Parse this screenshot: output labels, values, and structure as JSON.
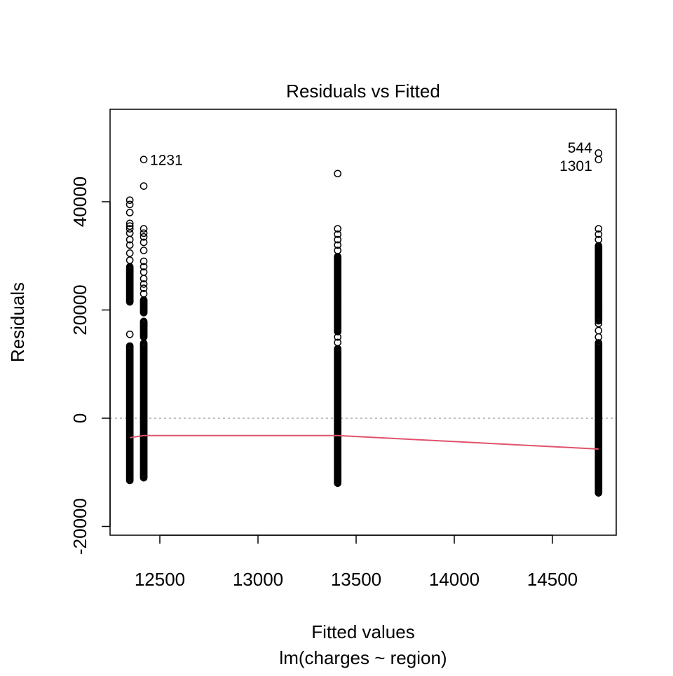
{
  "chart_data": {
    "type": "scatter",
    "title": "Residuals vs Fitted",
    "xlabel": "Fitted values",
    "subtitle": "lm(charges ~ region)",
    "ylabel": "Residuals",
    "xlim": [
      12250,
      14835
    ],
    "ylim": [
      -21700,
      57000
    ],
    "xticks": [
      12500,
      13000,
      13500,
      14000,
      14500
    ],
    "xtick_labels": [
      "12500",
      "13000",
      "13500",
      "14000",
      "14500"
    ],
    "yticks": [
      -20000,
      0,
      20000,
      40000
    ],
    "ytick_labels": [
      "-20000",
      "0",
      "20000",
      "40000"
    ],
    "grid": false,
    "reference_line": 0,
    "groups": [
      {
        "fitted": 12347,
        "dense_ranges": [
          [
            -11500,
            13500
          ],
          [
            21500,
            28000
          ]
        ],
        "points": [
          15500,
          29200,
          30500,
          32000,
          33000,
          34200,
          35000,
          35500,
          36000,
          38000,
          39500,
          40300
        ]
      },
      {
        "fitted": 12418,
        "dense_ranges": [
          [
            -11000,
            14000
          ],
          [
            15000,
            18000
          ],
          [
            19500,
            22000
          ]
        ],
        "points": [
          23000,
          24000,
          24800,
          25800,
          27000,
          28000,
          29000,
          31000,
          32500,
          33500,
          34200,
          35000,
          42900,
          47800
        ]
      },
      {
        "fitted": 13406,
        "dense_ranges": [
          [
            -12000,
            13000
          ],
          [
            16000,
            30000
          ]
        ],
        "points": [
          14000,
          15000,
          31000,
          32000,
          33000,
          34000,
          35000,
          45200
        ]
      },
      {
        "fitted": 14735,
        "dense_ranges": [
          [
            -13800,
            14000
          ],
          [
            18000,
            32000
          ]
        ],
        "points": [
          15000,
          16200,
          17500,
          20000,
          33000,
          34000,
          35000,
          47800,
          49000
        ]
      }
    ],
    "smoother": {
      "color": "#DF536B",
      "x": [
        12347,
        12418,
        13406,
        14735
      ],
      "y": [
        -3600,
        -3200,
        -3200,
        -5700
      ]
    },
    "annotations": [
      {
        "label": "1231",
        "x": 12418,
        "y": 47800,
        "side": "right"
      },
      {
        "label": "544",
        "x": 14735,
        "y": 49000,
        "side": "left"
      },
      {
        "label": "1301",
        "x": 14735,
        "y": 47800,
        "side": "left"
      }
    ]
  }
}
